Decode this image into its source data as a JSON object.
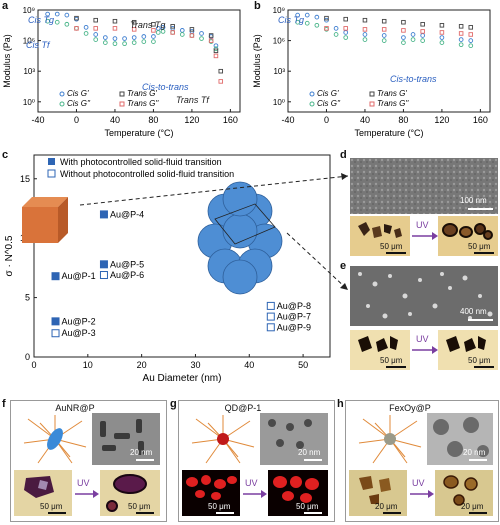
{
  "panels": {
    "a": {
      "letter": "a"
    },
    "b": {
      "letter": "b"
    },
    "c": {
      "letter": "c"
    },
    "d": {
      "letter": "d",
      "em_scale": "100 nm",
      "opt_scale_1": "50 μm",
      "opt_scale_2": "50 μm",
      "uv": "UV"
    },
    "e": {
      "letter": "e",
      "em_scale": "400 nm",
      "opt_scale_1": "50 μm",
      "opt_scale_2": "50 μm",
      "uv": "UV"
    },
    "f": {
      "letter": "f",
      "title": "AuNR@P",
      "em_scale": "20 nm",
      "opt_scale_1": "50 μm",
      "opt_scale_2": "50 μm",
      "uv": "UV"
    },
    "g": {
      "letter": "g",
      "title": "QD@P-1",
      "em_scale": "20 nm",
      "opt_scale_1": "50 μm",
      "opt_scale_2": "50 μm",
      "uv": "UV"
    },
    "h": {
      "letter": "h",
      "title": "FexOy@P",
      "em_scale": "20 nm",
      "opt_scale_1": "20 μm",
      "opt_scale_2": "20 μm",
      "uv": "UV"
    }
  },
  "chart_data": [
    {
      "type": "scatter",
      "panel": "a",
      "xlabel": "Temperature (°C)",
      "ylabel": "Modulus (Pa)",
      "xlim": [
        -40,
        170
      ],
      "ylim_log10": [
        -1,
        9
      ],
      "xticks": [
        "-40",
        "0",
        "40",
        "80",
        "120",
        "160"
      ],
      "yticks": [
        "10⁰",
        "10³",
        "10⁶",
        "10⁹"
      ],
      "legend": [
        "Cis G'",
        "Cis G''",
        "Trans G'",
        "Trans G''"
      ],
      "annotations": [
        "Cis Tg",
        "Trans Tg",
        "Cis Tf",
        "Cis-to-trans",
        "Trans Tf"
      ],
      "colors": {
        "cis_g1": "#3f7fd0",
        "cis_g2": "#4ab58a",
        "trans_g1": "#444444",
        "trans_g2": "#e06a6a"
      },
      "series": [
        {
          "name": "Cis G'",
          "x": [
            -30,
            -20,
            -10,
            0,
            10,
            20,
            30,
            40,
            50,
            60,
            70,
            80,
            85,
            90,
            100,
            110,
            120,
            130,
            140,
            145
          ],
          "y_log10": [
            8.6,
            8.6,
            8.5,
            8.1,
            7.3,
            6.6,
            6.3,
            6.2,
            6.2,
            6.3,
            6.4,
            6.4,
            7.2,
            7.3,
            7.2,
            7.0,
            6.9,
            6.7,
            6.4,
            5.5
          ]
        },
        {
          "name": "Cis G''",
          "x": [
            -30,
            -20,
            -10,
            0,
            10,
            20,
            30,
            40,
            50,
            60,
            70,
            80,
            85,
            90,
            100,
            110,
            120,
            130,
            140,
            145
          ],
          "y_log10": [
            7.9,
            7.8,
            7.6,
            7.2,
            6.7,
            6.1,
            5.8,
            5.7,
            5.7,
            5.8,
            5.9,
            5.9,
            6.8,
            6.9,
            6.8,
            6.6,
            6.5,
            6.2,
            5.9,
            5.2
          ]
        },
        {
          "name": "Trans G'",
          "x": [
            0,
            20,
            40,
            60,
            80,
            100,
            120,
            140,
            145,
            150
          ],
          "y_log10": [
            8.2,
            8.0,
            7.9,
            7.8,
            7.6,
            7.4,
            7.1,
            6.5,
            5.0,
            3.0
          ]
        },
        {
          "name": "Trans G''",
          "x": [
            0,
            20,
            40,
            60,
            80,
            100,
            120,
            140,
            145,
            150
          ],
          "y_log10": [
            7.2,
            7.2,
            7.2,
            7.1,
            7.0,
            6.8,
            6.5,
            6.0,
            4.5,
            2.0
          ]
        }
      ]
    },
    {
      "type": "scatter",
      "panel": "b",
      "xlabel": "Temperature (°C)",
      "ylabel": "Modulus (Pa)",
      "xlim": [
        -40,
        170
      ],
      "ylim_log10": [
        -1,
        9
      ],
      "xticks": [
        "-40",
        "0",
        "40",
        "80",
        "120",
        "160"
      ],
      "yticks": [
        "10⁰",
        "10³",
        "10⁶",
        "10⁹"
      ],
      "legend": [
        "Cis G'",
        "Cis G''",
        "Trans G'",
        "Trans G''"
      ],
      "annotations": [
        "Cis Tg",
        "Cis-to-trans"
      ],
      "colors": {
        "cis_g1": "#3f7fd0",
        "cis_g2": "#4ab58a",
        "trans_g1": "#444444",
        "trans_g2": "#e06a6a"
      },
      "series": [
        {
          "name": "Cis G'",
          "x": [
            -30,
            -20,
            -10,
            0,
            10,
            20,
            40,
            60,
            80,
            90,
            100,
            120,
            140,
            150
          ],
          "y_log10": [
            8.5,
            8.5,
            8.3,
            8.0,
            7.2,
            6.8,
            6.6,
            6.5,
            6.3,
            6.6,
            6.5,
            6.3,
            6.1,
            6.0
          ]
        },
        {
          "name": "Cis G''",
          "x": [
            -30,
            -20,
            -10,
            0,
            10,
            20,
            40,
            60,
            80,
            90,
            100,
            120,
            140,
            150
          ],
          "y_log10": [
            7.8,
            7.7,
            7.5,
            7.1,
            6.6,
            6.3,
            6.1,
            6.0,
            5.8,
            6.1,
            6.0,
            5.8,
            5.6,
            5.5
          ]
        },
        {
          "name": "Trans G'",
          "x": [
            0,
            20,
            40,
            60,
            80,
            100,
            120,
            140,
            150
          ],
          "y_log10": [
            8.2,
            8.1,
            8.0,
            7.9,
            7.8,
            7.6,
            7.5,
            7.4,
            7.3
          ]
        },
        {
          "name": "Trans G''",
          "x": [
            0,
            20,
            40,
            60,
            80,
            100,
            120,
            140,
            150
          ],
          "y_log10": [
            7.2,
            7.2,
            7.1,
            7.1,
            7.0,
            6.9,
            6.8,
            6.7,
            6.6
          ]
        }
      ]
    },
    {
      "type": "scatter",
      "panel": "c",
      "xlabel": "Au Diameter (nm)",
      "ylabel": "σ · N^0.5",
      "xlim": [
        0,
        55
      ],
      "ylim": [
        0,
        17
      ],
      "xticks": [
        "0",
        "10",
        "20",
        "30",
        "40",
        "50"
      ],
      "yticks": [
        "0",
        "5",
        "10",
        "15"
      ],
      "legend": [
        "With photocontrolled solid-fluid transition",
        "Without photocontrolled solid-fluid transition"
      ],
      "points": [
        {
          "label": "Au@P-1",
          "x": 4,
          "y": 6.8,
          "filled": true
        },
        {
          "label": "Au@P-2",
          "x": 4,
          "y": 3.0,
          "filled": true
        },
        {
          "label": "Au@P-3",
          "x": 4,
          "y": 2.0,
          "filled": false
        },
        {
          "label": "Au@P-4",
          "x": 13,
          "y": 12.0,
          "filled": true
        },
        {
          "label": "Au@P-5",
          "x": 13,
          "y": 7.8,
          "filled": true
        },
        {
          "label": "Au@P-6",
          "x": 13,
          "y": 6.9,
          "filled": false
        },
        {
          "label": "Au@P-7",
          "x": 44,
          "y": 3.4,
          "filled": false
        },
        {
          "label": "Au@P-8",
          "x": 44,
          "y": 4.3,
          "filled": false
        },
        {
          "label": "Au@P-9",
          "x": 44,
          "y": 2.5,
          "filled": false
        }
      ]
    }
  ]
}
